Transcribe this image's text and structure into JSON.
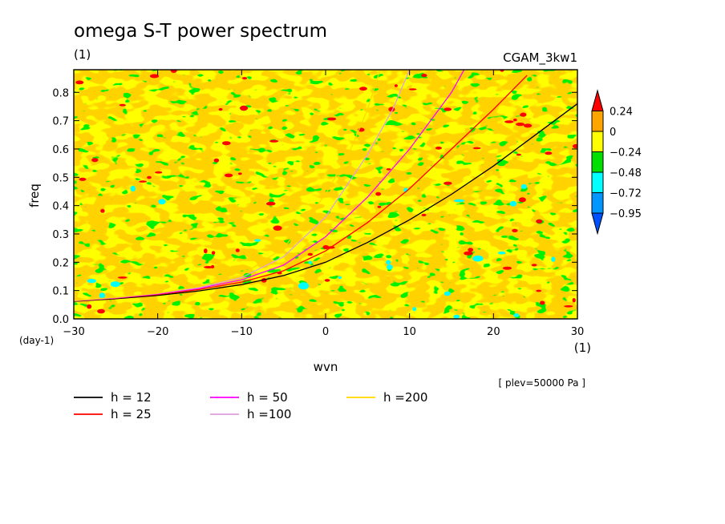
{
  "chart_data": {
    "type": "heatmap",
    "title": "omega S-T power spectrum",
    "subtitle_left": "(1)",
    "subtitle_right": "CGAM_3kw1",
    "xlabel": "wvn",
    "ylabel": "freq",
    "xunit": "(1)",
    "yunit": "(day-1)",
    "annotation": "[ plev=50000 Pa ]",
    "xlim": [
      -30,
      30
    ],
    "ylim": [
      0,
      0.88
    ],
    "xticks": [
      -30,
      -20,
      -10,
      0,
      10,
      20,
      30
    ],
    "yticks": [
      0.0,
      0.1,
      0.2,
      0.3,
      0.4,
      0.5,
      0.6,
      0.7,
      0.8
    ],
    "colorbar": {
      "levels": [
        "0.24",
        "0",
        "−0.24",
        "−0.48",
        "−0.72",
        "−0.95"
      ],
      "colors": [
        "#ff0000",
        "#ffa500",
        "#ffff00",
        "#00e000",
        "#00ffff",
        "#0096ff",
        "#0050ff"
      ]
    },
    "series": [
      {
        "name": "h = 12",
        "color": "#000000",
        "h": 12,
        "points": [
          [
            -30,
            0.062
          ],
          [
            -25,
            0.071
          ],
          [
            -20,
            0.083
          ],
          [
            -15,
            0.099
          ],
          [
            -10,
            0.121
          ],
          [
            -5,
            0.153
          ],
          [
            0,
            0.2
          ],
          [
            5,
            0.27
          ],
          [
            10,
            0.35
          ],
          [
            15,
            0.44
          ],
          [
            20,
            0.54
          ],
          [
            25,
            0.65
          ],
          [
            30,
            0.76
          ]
        ]
      },
      {
        "name": "h = 25",
        "color": "#ff0000",
        "h": 25,
        "points": [
          [
            -30,
            0.063
          ],
          [
            -25,
            0.073
          ],
          [
            -20,
            0.086
          ],
          [
            -15,
            0.104
          ],
          [
            -10,
            0.13
          ],
          [
            -5,
            0.17
          ],
          [
            0,
            0.24
          ],
          [
            5,
            0.34
          ],
          [
            10,
            0.46
          ],
          [
            15,
            0.6
          ],
          [
            20,
            0.74
          ],
          [
            24,
            0.86
          ]
        ]
      },
      {
        "name": "h = 50",
        "color": "#ff00ff",
        "h": 50,
        "points": [
          [
            -30,
            0.064
          ],
          [
            -25,
            0.074
          ],
          [
            -20,
            0.088
          ],
          [
            -15,
            0.108
          ],
          [
            -10,
            0.138
          ],
          [
            -5,
            0.19
          ],
          [
            0,
            0.29
          ],
          [
            5,
            0.43
          ],
          [
            10,
            0.6
          ],
          [
            15,
            0.8
          ],
          [
            16.5,
            0.88
          ]
        ]
      },
      {
        "name": "h =100",
        "color": "#dda0dd",
        "h": 100,
        "points": [
          [
            -30,
            0.064
          ],
          [
            -25,
            0.075
          ],
          [
            -20,
            0.09
          ],
          [
            -15,
            0.111
          ],
          [
            -10,
            0.146
          ],
          [
            -5,
            0.22
          ],
          [
            0,
            0.36
          ],
          [
            5,
            0.58
          ],
          [
            8,
            0.74
          ],
          [
            10,
            0.88
          ]
        ]
      },
      {
        "name": "h =200",
        "color": "#ffd700",
        "h": 200,
        "points": [
          [
            -30,
            0.065
          ],
          [
            -25,
            0.076
          ],
          [
            -20,
            0.091
          ],
          [
            -15,
            0.114
          ],
          [
            -10,
            0.155
          ],
          [
            -5,
            0.25
          ],
          [
            0,
            0.44
          ],
          [
            3,
            0.6
          ],
          [
            5,
            0.74
          ],
          [
            6.5,
            0.88
          ]
        ]
      }
    ],
    "legend_placement": "bottom"
  }
}
